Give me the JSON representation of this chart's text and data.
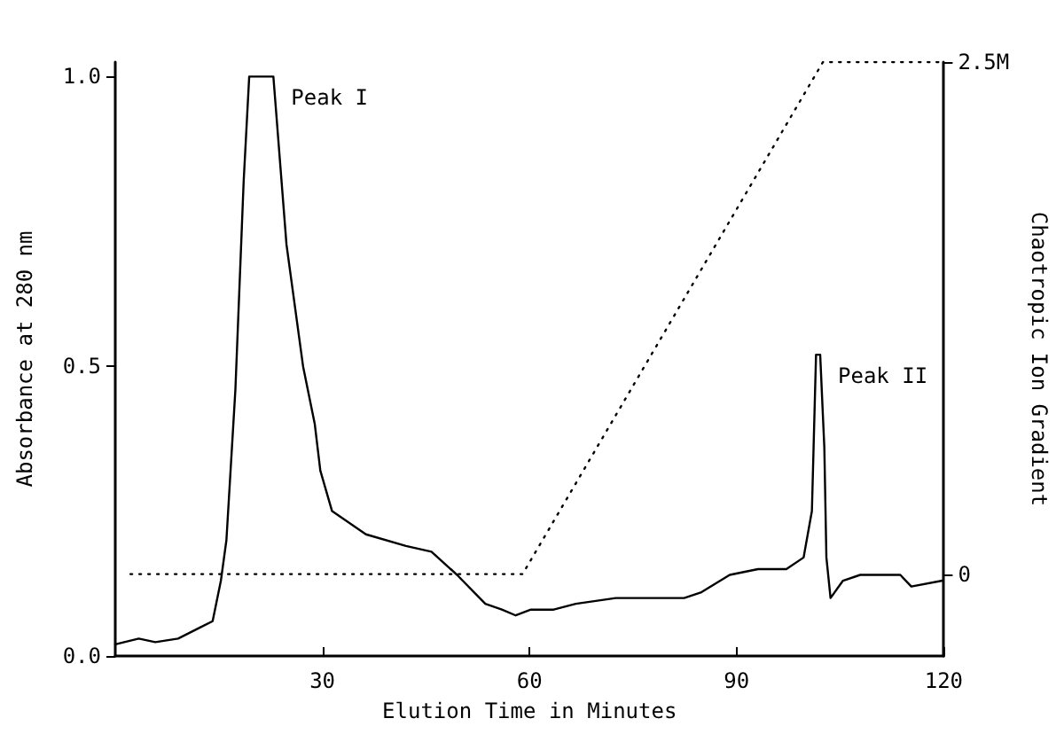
{
  "chart_data": {
    "type": "line",
    "xlabel": "Elution Time in Minutes",
    "ylabel": "Absorbance at 280 nm",
    "y2label": "Chaotropic Ion Gradient",
    "annotations": [
      {
        "text": "Peak I",
        "x": 22.9,
        "y": 1.0
      },
      {
        "text": "Peak II",
        "x": 102.1,
        "y": 0.52
      }
    ],
    "xlim": [
      0,
      120
    ],
    "xticks": [
      30,
      60,
      90,
      120
    ],
    "ylim": [
      0,
      1.025
    ],
    "yticks": [
      {
        "value": 0,
        "label": "0.0"
      },
      {
        "value": 0.5,
        "label": "0.5"
      },
      {
        "value": 1,
        "label": "1.0"
      }
    ],
    "y2lim": [
      -0.4,
      2.5
    ],
    "y2ticks": [
      0,
      {
        "value": 2.5,
        "label": "2.5M"
      }
    ],
    "grid": false,
    "marker": "none",
    "series": [
      {
        "color": "#000000",
        "line_style": "solid",
        "x": [
          0,
          3.4,
          5.8,
          9.1,
          12.4,
          14.1,
          15.3,
          16.1,
          17.4,
          18.6,
          19.4,
          22.9,
          24.8,
          27.2,
          28.9,
          29.7,
          31.4,
          36.3,
          42.1,
          45.8,
          49.5,
          53.6,
          56,
          58,
          60.2,
          63.5,
          66.7,
          72.5,
          77.5,
          82.4,
          84.9,
          89,
          93.1,
          97.2,
          99.7,
          100.9,
          101.5,
          102.1,
          102.7,
          103,
          103.6,
          105.4,
          107.9,
          110.4,
          113.7,
          115.3,
          119.8
        ],
        "values": [
          0.02,
          0.03,
          0.024,
          0.03,
          0.05,
          0.06,
          0.13,
          0.2,
          0.46,
          0.82,
          1.0,
          1.0,
          0.71,
          0.5,
          0.4,
          0.32,
          0.25,
          0.21,
          0.19,
          0.18,
          0.14,
          0.09,
          0.08,
          0.07,
          0.08,
          0.08,
          0.09,
          0.1,
          0.1,
          0.1,
          0.11,
          0.14,
          0.15,
          0.15,
          0.17,
          0.25,
          0.52,
          0.52,
          0.36,
          0.17,
          0.1,
          0.13,
          0.14,
          0.14,
          0.14,
          0.12,
          0.13
        ]
      },
      {
        "color": "#000000",
        "line_style": "dotted",
        "axis": "y2",
        "x": [
          2.2,
          59,
          102.5,
          120
        ],
        "values": [
          0,
          0,
          2.5,
          2.5
        ]
      }
    ]
  }
}
